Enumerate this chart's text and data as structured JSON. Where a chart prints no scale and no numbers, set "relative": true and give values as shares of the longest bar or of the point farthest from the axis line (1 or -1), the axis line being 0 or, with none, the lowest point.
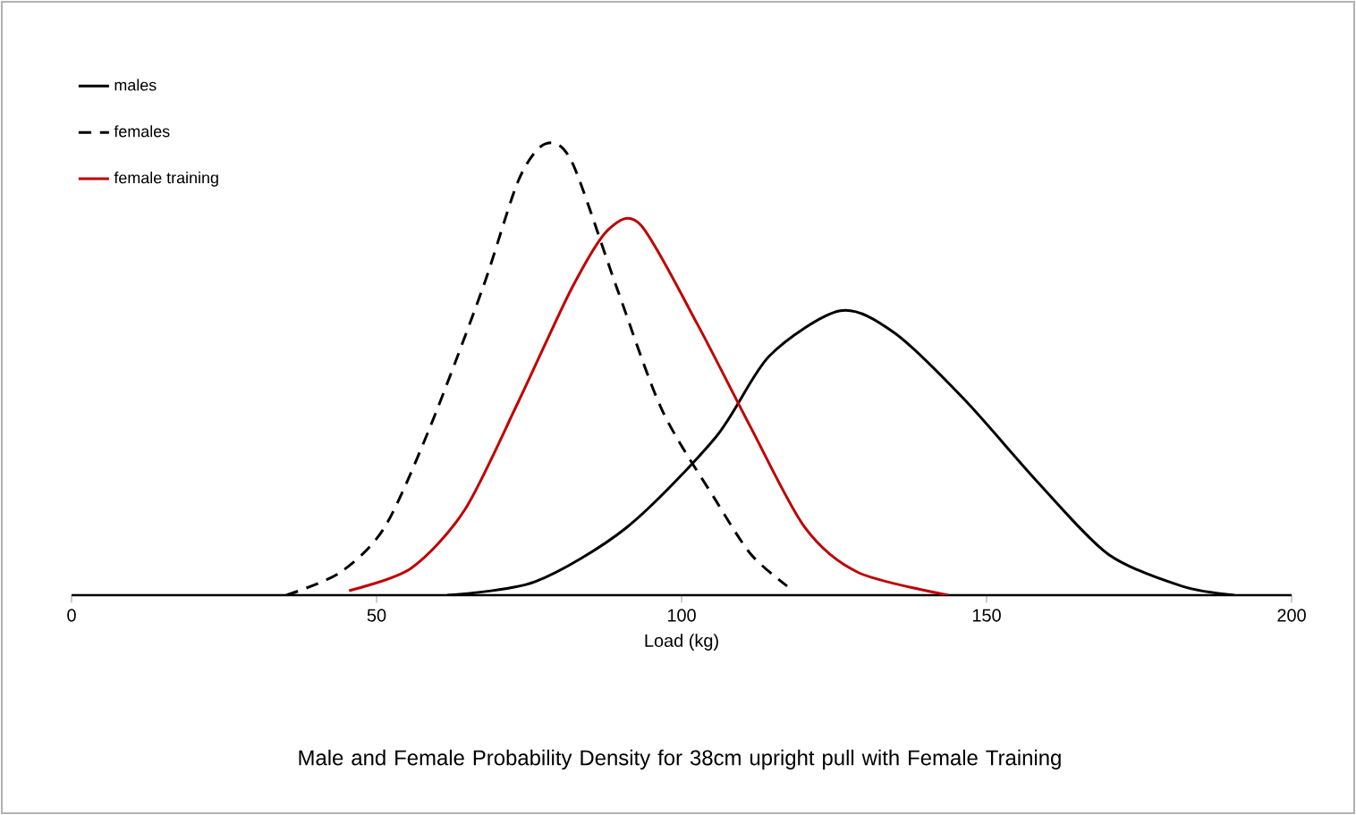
{
  "chart_data": {
    "type": "line",
    "title": "Male and Female Probability Density for 38cm upright pull with Female Training",
    "xlabel": "Load (kg)",
    "relative": true,
    "legend": "top left",
    "xlim": [
      0,
      200
    ],
    "xticks": [
      0,
      50,
      100,
      150,
      200
    ],
    "series": [
      {
        "name": "males",
        "color": "#000000",
        "line_style": "solid",
        "x": [
          61.6,
          76,
          91,
          105.6,
          114.4,
          126,
          135,
          146.6,
          158.4,
          170,
          182,
          190.6
        ],
        "values": [
          0,
          0.03,
          0.15,
          0.35,
          0.53,
          0.63,
          0.58,
          0.43,
          0.25,
          0.09,
          0.02,
          0
        ]
      },
      {
        "name": "females",
        "color": "#000000",
        "line_style": "dashed",
        "x": [
          35.2,
          44,
          51.3,
          58.7,
          67.4,
          73.3,
          77.7,
          82,
          89.4,
          96.8,
          105.6,
          111.4,
          117.3
        ],
        "values": [
          0,
          0.05,
          0.15,
          0.37,
          0.68,
          0.92,
          1,
          0.96,
          0.68,
          0.41,
          0.21,
          0.09,
          0.02
        ]
      },
      {
        "name": "female training",
        "color": "#c00000",
        "line_style": "solid",
        "x": [
          45.5,
          55.7,
          64.5,
          73.3,
          82,
          88,
          93.3,
          102.6,
          111.4,
          120.2,
          129,
          143.7
        ],
        "values": [
          0.01,
          0.06,
          0.19,
          0.43,
          0.68,
          0.81,
          0.82,
          0.6,
          0.37,
          0.15,
          0.05,
          0
        ]
      }
    ]
  }
}
